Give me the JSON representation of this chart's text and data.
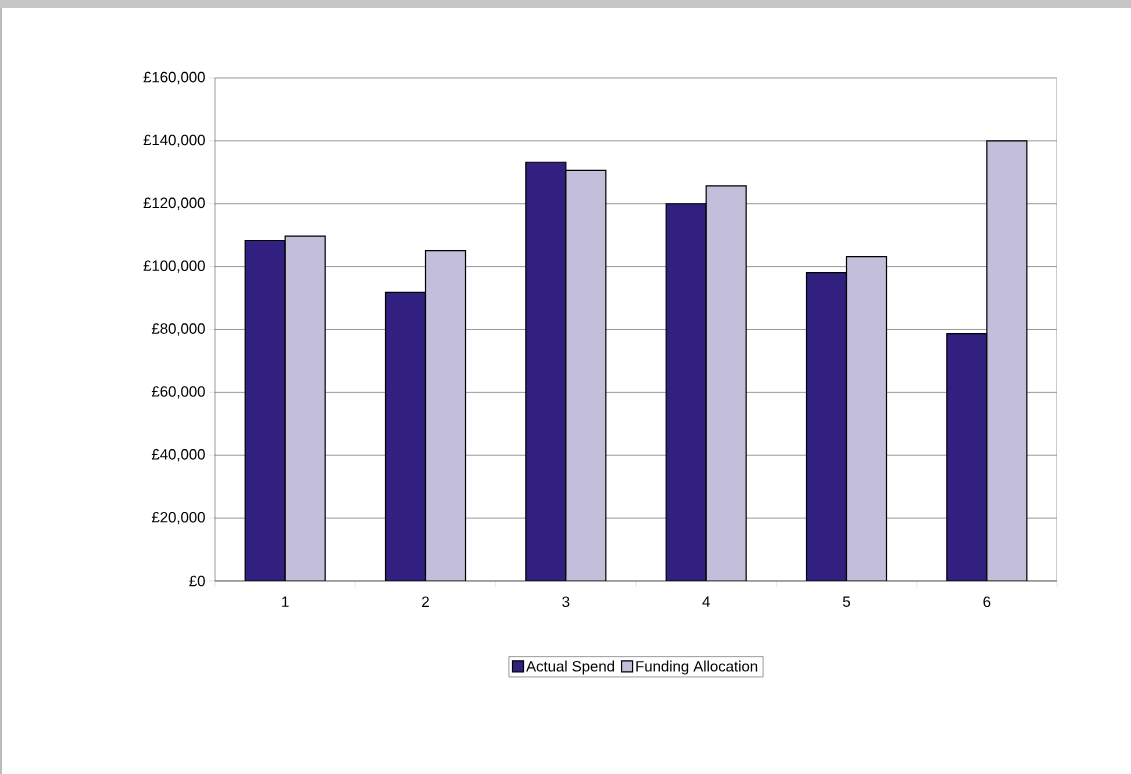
{
  "chart_data": {
    "type": "bar",
    "categories": [
      "1",
      "2",
      "3",
      "4",
      "5",
      "6"
    ],
    "series": [
      {
        "name": "Actual Spend",
        "color": "#31207f",
        "values": [
          108300,
          91800,
          133200,
          120000,
          98100,
          78700
        ]
      },
      {
        "name": "Funding Allocation",
        "color": "#c3bfdb",
        "values": [
          109700,
          105100,
          130600,
          125700,
          103200,
          140000
        ]
      }
    ],
    "ylim": [
      0,
      160000
    ],
    "yticks": [
      {
        "value": 0,
        "label": "£0"
      },
      {
        "value": 20000,
        "label": "£20,000"
      },
      {
        "value": 40000,
        "label": "£40,000"
      },
      {
        "value": 60000,
        "label": "£60,000"
      },
      {
        "value": 80000,
        "label": "£80,000"
      },
      {
        "value": 100000,
        "label": "£100,000"
      },
      {
        "value": 120000,
        "label": "£120,000"
      },
      {
        "value": 140000,
        "label": "£140,000"
      },
      {
        "value": 160000,
        "label": "£160,000"
      }
    ],
    "grid": "y",
    "legend": "bottom"
  }
}
